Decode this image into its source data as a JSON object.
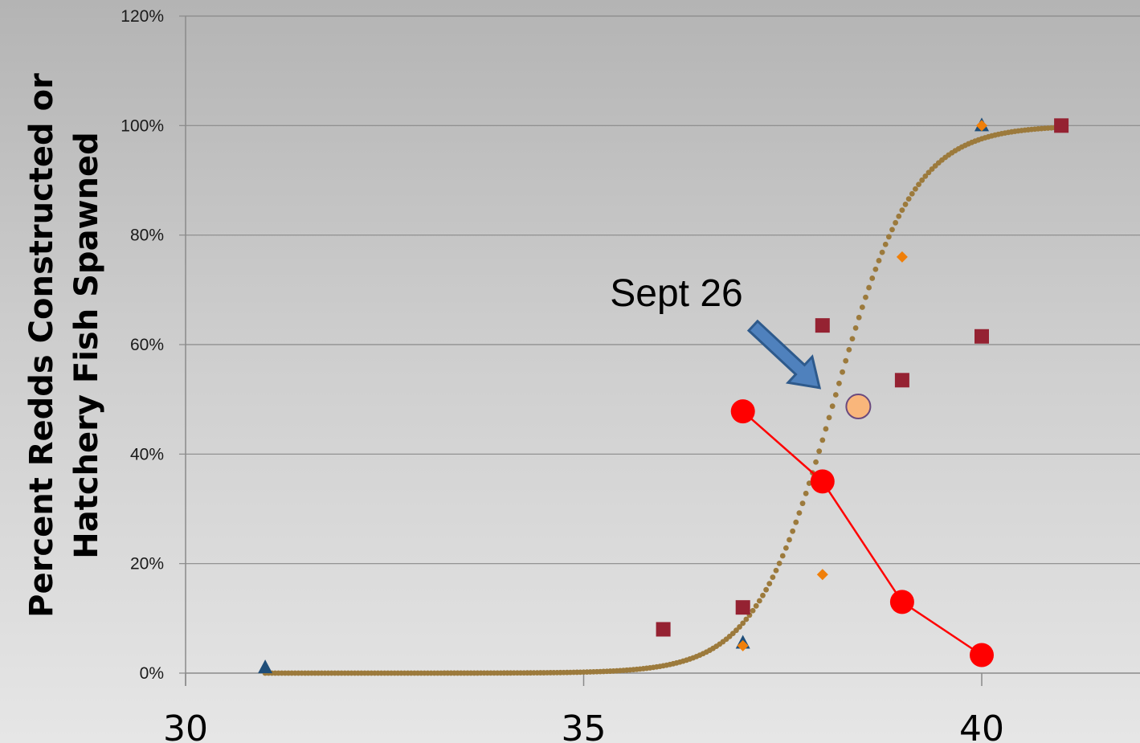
{
  "chart_data": {
    "type": "scatter",
    "title": "",
    "ylabel_lines": [
      "Percent Redds Constructed or",
      "Hatchery Fish Spawned"
    ],
    "xlabel": "",
    "xlim": [
      30,
      42
    ],
    "ylim": [
      0,
      1.2
    ],
    "x_ticks": [
      30,
      35,
      40
    ],
    "x_tick_labels": [
      "30",
      "35",
      "40"
    ],
    "y_ticks": [
      0,
      0.2,
      0.4,
      0.6,
      0.8,
      1.0,
      1.2
    ],
    "y_tick_labels": [
      "0%",
      "20%",
      "40%",
      "60%",
      "80%",
      "100%",
      "120%"
    ],
    "grid": "horizontal",
    "series": [
      {
        "marker": "triangle",
        "color": "#1f4e79",
        "points": [
          [
            31,
            0.01
          ],
          [
            37,
            0.055
          ],
          [
            38,
            0.35
          ],
          [
            40,
            1.0
          ]
        ]
      },
      {
        "marker": "diamond",
        "color": "#f07f09",
        "points": [
          [
            37,
            0.05
          ],
          [
            38,
            0.18
          ],
          [
            39,
            0.76
          ],
          [
            40,
            1.0
          ]
        ]
      },
      {
        "marker": "square",
        "color": "#952232",
        "points": [
          [
            36,
            0.08
          ],
          [
            37,
            0.12
          ],
          [
            38,
            0.635
          ],
          [
            39,
            0.535
          ],
          [
            40,
            0.615
          ],
          [
            41,
            1.0
          ]
        ]
      },
      {
        "marker": "circle",
        "line": true,
        "color": "#ff0000",
        "points": [
          [
            37,
            0.478
          ],
          [
            38,
            0.35
          ],
          [
            39,
            0.13
          ],
          [
            40,
            0.033
          ]
        ]
      },
      {
        "type": "curve",
        "style": "dotted",
        "color": "#9c7a3c",
        "logistic": {
          "midpoint": 38.15,
          "scale": 0.5,
          "x_start": 31,
          "x_end": 41
        },
        "points": [
          [
            31,
            0.0
          ],
          [
            33,
            0.0
          ],
          [
            35,
            0.01
          ],
          [
            36,
            0.03
          ],
          [
            37,
            0.11
          ],
          [
            38,
            0.44
          ],
          [
            39,
            0.82
          ],
          [
            40,
            0.91
          ],
          [
            41,
            0.96
          ]
        ]
      }
    ],
    "highlight_point": {
      "x": 38.45,
      "y": 0.487,
      "fill": "#f9b67b",
      "stroke": "#6b4a7e"
    },
    "annotation": {
      "text": "Sept 26",
      "arrow_color": "#4f81bd"
    }
  }
}
